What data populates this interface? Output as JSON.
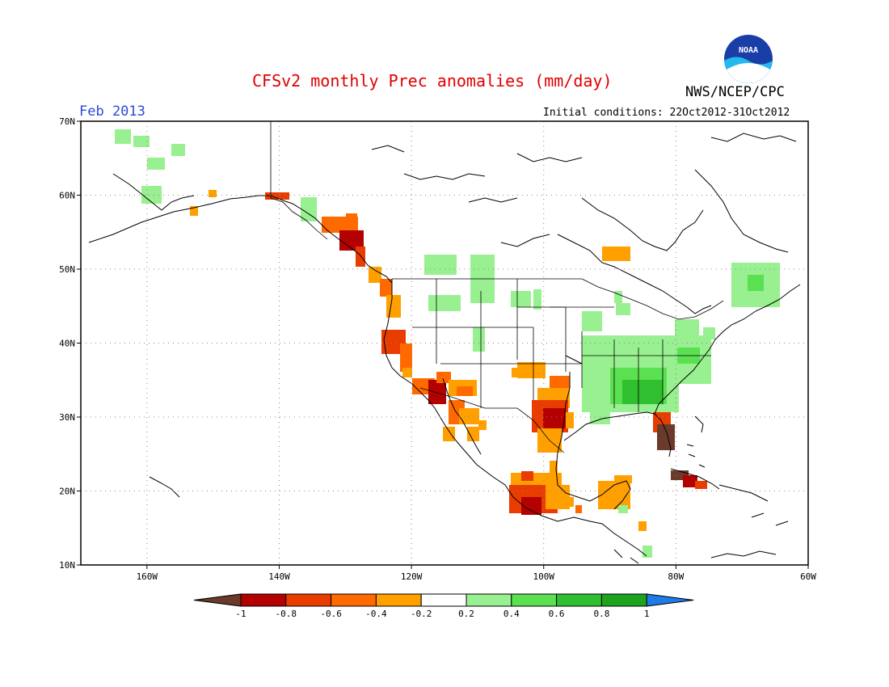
{
  "title": "CFSv2 monthly Prec anomalies (mm/day)",
  "agency": "NWS/NCEP/CPC",
  "month_label": "Feb 2013",
  "initial_conditions": "Initial conditions: 22Oct2012-31Oct2012",
  "logo_text": "NOAA",
  "map": {
    "lon_range": [
      -170,
      -60
    ],
    "lat_range": [
      10,
      70
    ],
    "lat_labels": [
      "70N",
      "60N",
      "50N",
      "40N",
      "30N",
      "20N",
      "10N"
    ],
    "lon_labels": [
      "160W",
      "140W",
      "120W",
      "100W",
      "80W",
      "60W"
    ]
  },
  "colorbar": {
    "labels": [
      "-1",
      "-0.8",
      "-0.6",
      "-0.4",
      "-0.2",
      "0.2",
      "0.4",
      "0.6",
      "0.8",
      "1"
    ],
    "colors": [
      "#6b3a2a",
      "#b30000",
      "#e83c00",
      "#ff6a00",
      "#ffa000",
      "#ffffff",
      "#98f090",
      "#5ae050",
      "#2fbf2f",
      "#1ea31e",
      "#1f7be8"
    ]
  }
}
